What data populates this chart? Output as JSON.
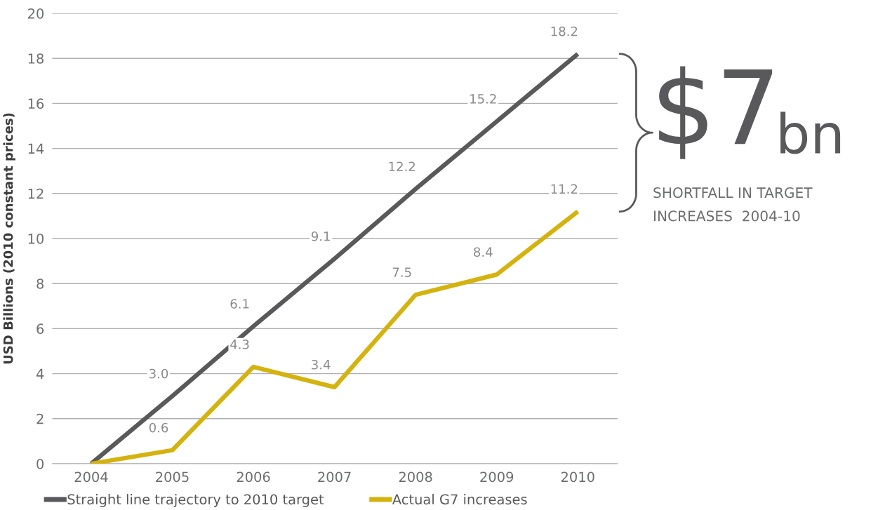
{
  "chart_data": {
    "type": "line",
    "ylabel": "USD Billions (2010 constant prices)",
    "categories": [
      "2004",
      "2005",
      "2006",
      "2007",
      "2008",
      "2009",
      "2010"
    ],
    "series": [
      {
        "name": "Straight line trajectory to 2010 target",
        "color": "#59595b",
        "values": [
          0,
          3.0,
          6.1,
          9.1,
          12.2,
          15.2,
          18.2
        ],
        "value_labels": [
          null,
          "3.0",
          "6.1",
          "9.1",
          "12.2",
          "15.2",
          "18.2"
        ]
      },
      {
        "name": "Actual G7 increases",
        "color": "#d4b30f",
        "values": [
          0,
          0.6,
          4.3,
          3.4,
          7.5,
          8.4,
          11.2
        ],
        "value_labels": [
          null,
          "0.6",
          "4.3",
          "3.4",
          "7.5",
          "8.4",
          "11.2"
        ]
      }
    ],
    "ylim": [
      0,
      20
    ],
    "yticks": [
      0,
      2,
      4,
      6,
      8,
      10,
      12,
      14,
      16,
      18,
      20
    ],
    "grid": "y",
    "legend": "bottom",
    "marker": "none",
    "line_style": "solid",
    "annotations": [
      "$7",
      "bn",
      "SHORTFALL IN TARGET\nINCREASES  2004-10"
    ]
  }
}
